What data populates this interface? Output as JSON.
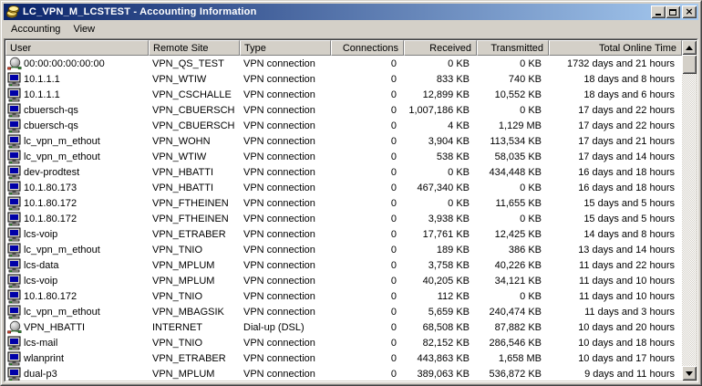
{
  "window": {
    "title": "LC_VPN_M_LCSTEST - Accounting Information",
    "app_icon": "coins-icon",
    "buttons": [
      "minimize",
      "maximize",
      "close"
    ]
  },
  "menu": {
    "items": [
      "Accounting",
      "View"
    ]
  },
  "colors": {
    "titlebar_start": "#0a246a",
    "titlebar_end": "#a6caf0",
    "chrome": "#d4d0c8",
    "list_bg": "#ffffff",
    "text": "#000000",
    "pc_screen_blue": "#0000a8"
  },
  "table": {
    "columns": [
      {
        "label": "User",
        "align": "left"
      },
      {
        "label": "Remote Site",
        "align": "left"
      },
      {
        "label": "Type",
        "align": "left"
      },
      {
        "label": "Connections",
        "align": "right"
      },
      {
        "label": "Received",
        "align": "right"
      },
      {
        "label": "Transmitted",
        "align": "right"
      },
      {
        "label": "Total Online Time",
        "align": "right"
      }
    ],
    "rows": [
      {
        "icon": "dialup-icon",
        "user": "00:00:00:00:00:00",
        "remote_site": "VPN_QS_TEST",
        "type": "VPN connection",
        "connections": "0",
        "received": "0 KB",
        "transmitted": "0 KB",
        "total_online_time": "1732 days and 21 hours"
      },
      {
        "icon": "computer-icon",
        "user": "10.1.1.1",
        "remote_site": "VPN_WTIW",
        "type": "VPN connection",
        "connections": "0",
        "received": "833 KB",
        "transmitted": "740 KB",
        "total_online_time": "18 days and 8 hours"
      },
      {
        "icon": "computer-icon",
        "user": "10.1.1.1",
        "remote_site": "VPN_CSCHALLE",
        "type": "VPN connection",
        "connections": "0",
        "received": "12,899 KB",
        "transmitted": "10,552 KB",
        "total_online_time": "18 days and 6 hours"
      },
      {
        "icon": "computer-icon",
        "user": "cbuersch-qs",
        "remote_site": "VPN_CBUERSCH",
        "type": "VPN connection",
        "connections": "0",
        "received": "1,007,186 KB",
        "transmitted": "0 KB",
        "total_online_time": "17 days and 22 hours"
      },
      {
        "icon": "computer-icon",
        "user": "cbuersch-qs",
        "remote_site": "VPN_CBUERSCH",
        "type": "VPN connection",
        "connections": "0",
        "received": "4 KB",
        "transmitted": "1,129 MB",
        "total_online_time": "17 days and 22 hours"
      },
      {
        "icon": "computer-icon",
        "user": "lc_vpn_m_ethout",
        "remote_site": "VPN_WOHN",
        "type": "VPN connection",
        "connections": "0",
        "received": "3,904 KB",
        "transmitted": "113,534 KB",
        "total_online_time": "17 days and 21 hours"
      },
      {
        "icon": "computer-icon",
        "user": "lc_vpn_m_ethout",
        "remote_site": "VPN_WTIW",
        "type": "VPN connection",
        "connections": "0",
        "received": "538 KB",
        "transmitted": "58,035 KB",
        "total_online_time": "17 days and 14 hours"
      },
      {
        "icon": "computer-icon",
        "user": "dev-prodtest",
        "remote_site": "VPN_HBATTI",
        "type": "VPN connection",
        "connections": "0",
        "received": "0 KB",
        "transmitted": "434,448 KB",
        "total_online_time": "16 days and 18 hours"
      },
      {
        "icon": "computer-icon",
        "user": "10.1.80.173",
        "remote_site": "VPN_HBATTI",
        "type": "VPN connection",
        "connections": "0",
        "received": "467,340 KB",
        "transmitted": "0 KB",
        "total_online_time": "16 days and 18 hours"
      },
      {
        "icon": "computer-icon",
        "user": "10.1.80.172",
        "remote_site": "VPN_FTHEINEN",
        "type": "VPN connection",
        "connections": "0",
        "received": "0 KB",
        "transmitted": "11,655 KB",
        "total_online_time": "15 days and 5 hours"
      },
      {
        "icon": "computer-icon",
        "user": "10.1.80.172",
        "remote_site": "VPN_FTHEINEN",
        "type": "VPN connection",
        "connections": "0",
        "received": "3,938 KB",
        "transmitted": "0 KB",
        "total_online_time": "15 days and 5 hours"
      },
      {
        "icon": "computer-icon",
        "user": "lcs-voip",
        "remote_site": "VPN_ETRABER",
        "type": "VPN connection",
        "connections": "0",
        "received": "17,761 KB",
        "transmitted": "12,425 KB",
        "total_online_time": "14 days and 8 hours"
      },
      {
        "icon": "computer-icon",
        "user": "lc_vpn_m_ethout",
        "remote_site": "VPN_TNIO",
        "type": "VPN connection",
        "connections": "0",
        "received": "189 KB",
        "transmitted": "386 KB",
        "total_online_time": "13 days and 14 hours"
      },
      {
        "icon": "computer-icon",
        "user": "lcs-data",
        "remote_site": "VPN_MPLUM",
        "type": "VPN connection",
        "connections": "0",
        "received": "3,758 KB",
        "transmitted": "40,226 KB",
        "total_online_time": "11 days and 22 hours"
      },
      {
        "icon": "computer-icon",
        "user": "lcs-voip",
        "remote_site": "VPN_MPLUM",
        "type": "VPN connection",
        "connections": "0",
        "received": "40,205 KB",
        "transmitted": "34,121 KB",
        "total_online_time": "11 days and 10 hours"
      },
      {
        "icon": "computer-icon",
        "user": "10.1.80.172",
        "remote_site": "VPN_TNIO",
        "type": "VPN connection",
        "connections": "0",
        "received": "112 KB",
        "transmitted": "0 KB",
        "total_online_time": "11 days and 10 hours"
      },
      {
        "icon": "computer-icon",
        "user": "lc_vpn_m_ethout",
        "remote_site": "VPN_MBAGSIK",
        "type": "VPN connection",
        "connections": "0",
        "received": "5,659 KB",
        "transmitted": "240,474 KB",
        "total_online_time": "11 days and 3 hours"
      },
      {
        "icon": "dialup-icon",
        "user": "VPN_HBATTI",
        "remote_site": "INTERNET",
        "type": "Dial-up (DSL)",
        "connections": "0",
        "received": "68,508 KB",
        "transmitted": "87,882 KB",
        "total_online_time": "10 days and 20 hours"
      },
      {
        "icon": "computer-icon",
        "user": "lcs-mail",
        "remote_site": "VPN_TNIO",
        "type": "VPN connection",
        "connections": "0",
        "received": "82,152 KB",
        "transmitted": "286,546 KB",
        "total_online_time": "10 days and 18 hours"
      },
      {
        "icon": "computer-icon",
        "user": "wlanprint",
        "remote_site": "VPN_ETRABER",
        "type": "VPN connection",
        "connections": "0",
        "received": "443,863 KB",
        "transmitted": "1,658 MB",
        "total_online_time": "10 days and 17 hours"
      },
      {
        "icon": "computer-icon",
        "user": "dual-p3",
        "remote_site": "VPN_MPLUM",
        "type": "VPN connection",
        "connections": "0",
        "received": "389,063 KB",
        "transmitted": "536,872 KB",
        "total_online_time": "9 days and 11 hours"
      }
    ]
  }
}
